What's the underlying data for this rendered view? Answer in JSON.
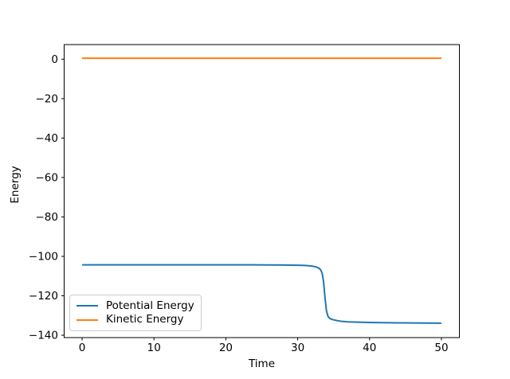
{
  "figure": {
    "background": "#ffffff",
    "spine_color": "#000000",
    "tick_color": "#000000",
    "legend_border_color": "#cccccc"
  },
  "chart_data": {
    "type": "line",
    "title": "",
    "xlabel": "Time",
    "ylabel": "Energy",
    "xlim": [
      -2.5,
      52.5
    ],
    "ylim": [
      -141.2,
      7.4
    ],
    "xticks": [
      0,
      10,
      20,
      30,
      40,
      50
    ],
    "yticks": [
      0,
      -20,
      -40,
      -60,
      -80,
      -100,
      -120,
      -140
    ],
    "grid": false,
    "legend": {
      "position": "lower left",
      "entries": [
        "Potential Energy",
        "Kinetic Energy"
      ]
    },
    "series": [
      {
        "name": "Potential Energy",
        "color": "#1f77b4",
        "x": [
          0,
          2,
          4,
          6,
          8,
          10,
          12,
          14,
          16,
          18,
          20,
          22,
          24,
          26,
          28,
          29,
          30,
          30.5,
          31,
          31.5,
          32,
          32.4,
          32.8,
          33.0,
          33.2,
          33.4,
          33.6,
          33.8,
          34.0,
          34.2,
          34.4,
          34.7,
          35,
          35.5,
          36,
          37,
          38,
          40,
          42,
          44,
          46,
          48,
          50
        ],
        "y": [
          -104.3,
          -104.3,
          -104.3,
          -104.3,
          -104.3,
          -104.3,
          -104.3,
          -104.3,
          -104.3,
          -104.3,
          -104.3,
          -104.3,
          -104.3,
          -104.35,
          -104.4,
          -104.45,
          -104.5,
          -104.55,
          -104.6,
          -104.75,
          -104.95,
          -105.2,
          -105.7,
          -106.1,
          -106.9,
          -108.5,
          -113.0,
          -121.0,
          -127.5,
          -130.3,
          -131.3,
          -131.9,
          -132.2,
          -132.6,
          -132.9,
          -133.2,
          -133.35,
          -133.55,
          -133.65,
          -133.72,
          -133.78,
          -133.84,
          -133.9
        ]
      },
      {
        "name": "Kinetic Energy",
        "color": "#ff7f0e",
        "x": [
          0,
          10,
          20,
          30,
          40,
          50
        ],
        "y": [
          0.5,
          0.5,
          0.5,
          0.5,
          0.5,
          0.5
        ]
      }
    ]
  }
}
